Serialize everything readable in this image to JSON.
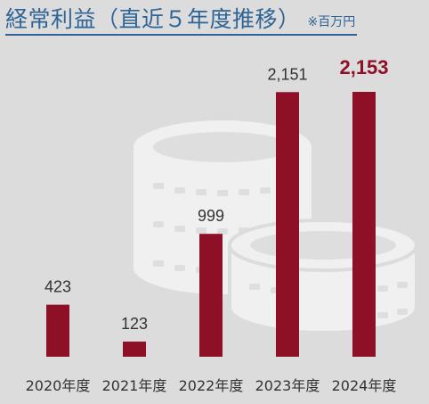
{
  "title": "経常利益（直近５年度推移）",
  "unit_note": "※百万円",
  "chart_data": {
    "type": "bar",
    "categories": [
      "2020年度",
      "2021年度",
      "2022年度",
      "2023年度",
      "2024年度"
    ],
    "values": [
      423,
      123,
      999,
      2151,
      2153
    ],
    "value_labels": [
      "423",
      "123",
      "999",
      "2,151",
      "2,153"
    ],
    "highlight_index": 4,
    "ylim": [
      0,
      2153
    ],
    "grid": false,
    "legend": "none"
  },
  "colors": {
    "bar": "#8e1027",
    "highlight_label": "#8e1027",
    "title": "#2f6496",
    "background": "#dcdcdc",
    "coin_illustration": "#f0f0f0"
  },
  "icons": [
    "coin-stack-icon"
  ]
}
